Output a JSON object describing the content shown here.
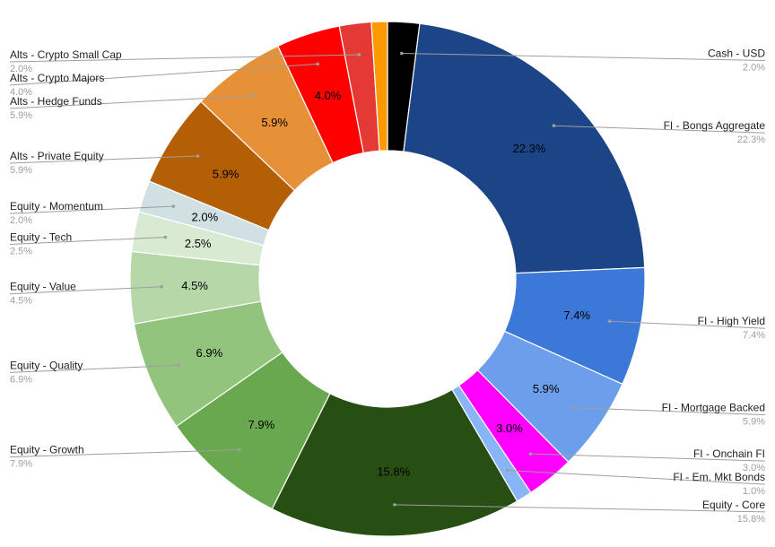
{
  "chart_data": {
    "type": "pie",
    "title": "",
    "start_angle_deg": 0,
    "slices": [
      {
        "label": "Cash - USD",
        "value": 2.0,
        "pct_text": "2.0%",
        "slice_text": "",
        "color": "#000000",
        "side": "right"
      },
      {
        "label": "FI - Bongs Aggregate",
        "value": 22.3,
        "pct_text": "22.3%",
        "slice_text": "22.3%",
        "color": "#1c4587",
        "side": "right"
      },
      {
        "label": "FI - High Yield",
        "value": 7.4,
        "pct_text": "7.4%",
        "slice_text": "7.4%",
        "color": "#3c78d8",
        "side": "right"
      },
      {
        "label": "FI - Mortgage Backed",
        "value": 5.9,
        "pct_text": "5.9%",
        "slice_text": "5.9%",
        "color": "#6d9eeb",
        "side": "right"
      },
      {
        "label": "FI - Onchain FI",
        "value": 3.0,
        "pct_text": "3.0%",
        "slice_text": "3.0%",
        "color": "#ff00ff",
        "side": "right"
      },
      {
        "label": "FI - Em. Mkt Bonds",
        "value": 1.0,
        "pct_text": "1.0%",
        "slice_text": "",
        "color": "#8ab4f8",
        "side": "right"
      },
      {
        "label": "Equity - Core",
        "value": 15.8,
        "pct_text": "15.8%",
        "slice_text": "15.8%",
        "color": "#274e13",
        "side": "right"
      },
      {
        "label": "Equity - Growth",
        "value": 7.9,
        "pct_text": "7.9%",
        "slice_text": "7.9%",
        "color": "#6aa84f",
        "side": "left"
      },
      {
        "label": "Equity - Quality",
        "value": 6.9,
        "pct_text": "6.9%",
        "slice_text": "6.9%",
        "color": "#93c47d",
        "side": "left"
      },
      {
        "label": "Equity - Value",
        "value": 4.5,
        "pct_text": "4.5%",
        "slice_text": "4.5%",
        "color": "#b6d7a8",
        "side": "left"
      },
      {
        "label": "Equity - Tech",
        "value": 2.5,
        "pct_text": "2.5%",
        "slice_text": "2.5%",
        "color": "#d9ead3",
        "side": "left"
      },
      {
        "label": "Equity - Momentum",
        "value": 2.0,
        "pct_text": "2.0%",
        "slice_text": "2.0%",
        "color": "#d0e0e3",
        "side": "left"
      },
      {
        "label": "Alts - Private Equity",
        "value": 5.9,
        "pct_text": "5.9%",
        "slice_text": "5.9%",
        "color": "#b45f06",
        "side": "left"
      },
      {
        "label": "Alts - Hedge Funds",
        "value": 5.9,
        "pct_text": "5.9%",
        "slice_text": "5.9%",
        "color": "#e69138",
        "side": "left"
      },
      {
        "label": "Alts - Crypto Majors",
        "value": 4.0,
        "pct_text": "4.0%",
        "slice_text": "4.0%",
        "color": "#ff0000",
        "side": "left"
      },
      {
        "label": "Alts - Crypto Small Cap",
        "value": 2.0,
        "pct_text": "2.0%",
        "slice_text": "",
        "color": "#e53935",
        "side": "left"
      },
      {
        "label": "",
        "value": 1.0,
        "pct_text": "",
        "slice_text": "",
        "color": "#ff9900",
        "side": "none"
      }
    ]
  }
}
